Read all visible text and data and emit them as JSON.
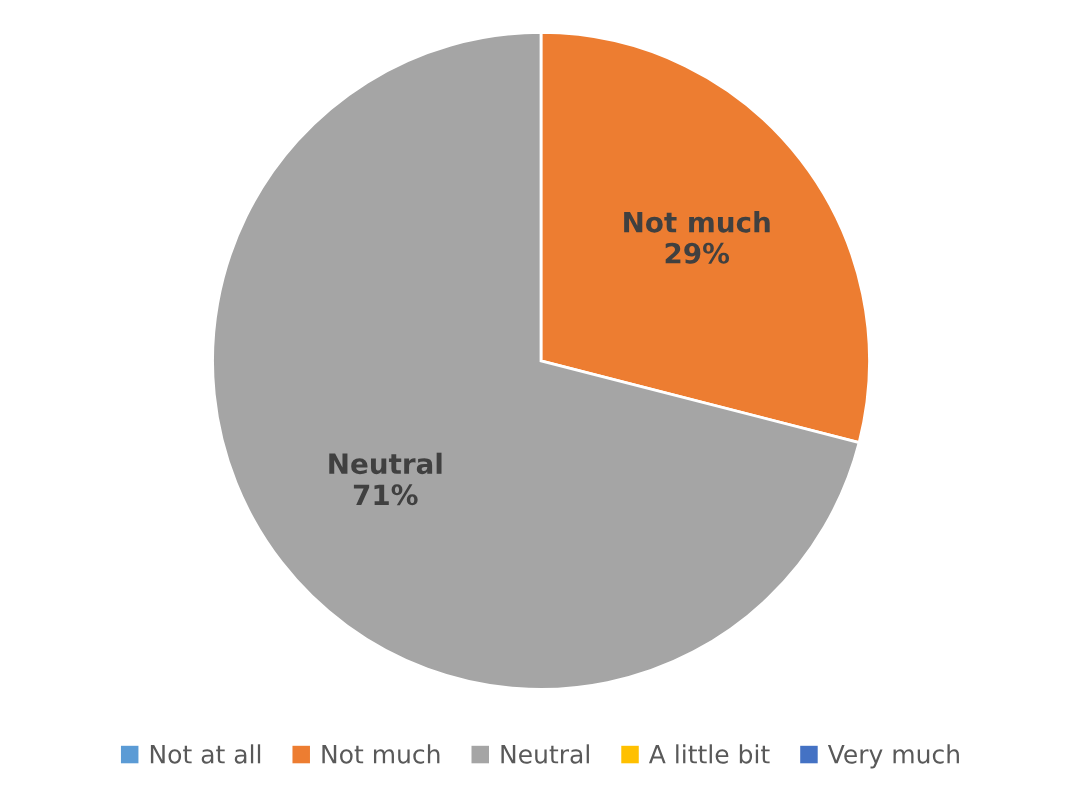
{
  "chart_data": {
    "type": "pie",
    "categories": [
      "Not at all",
      "Not much",
      "Neutral",
      "A little bit",
      "Very much"
    ],
    "values": [
      0,
      29,
      71,
      0,
      0
    ],
    "colors": [
      "#5b9bd5",
      "#ed7d31",
      "#a5a5a5",
      "#ffc000",
      "#4472c4"
    ],
    "value_labels": [
      null,
      "Not much\n29%",
      "Neutral\n71%",
      null,
      null
    ],
    "legend": "bottom"
  }
}
